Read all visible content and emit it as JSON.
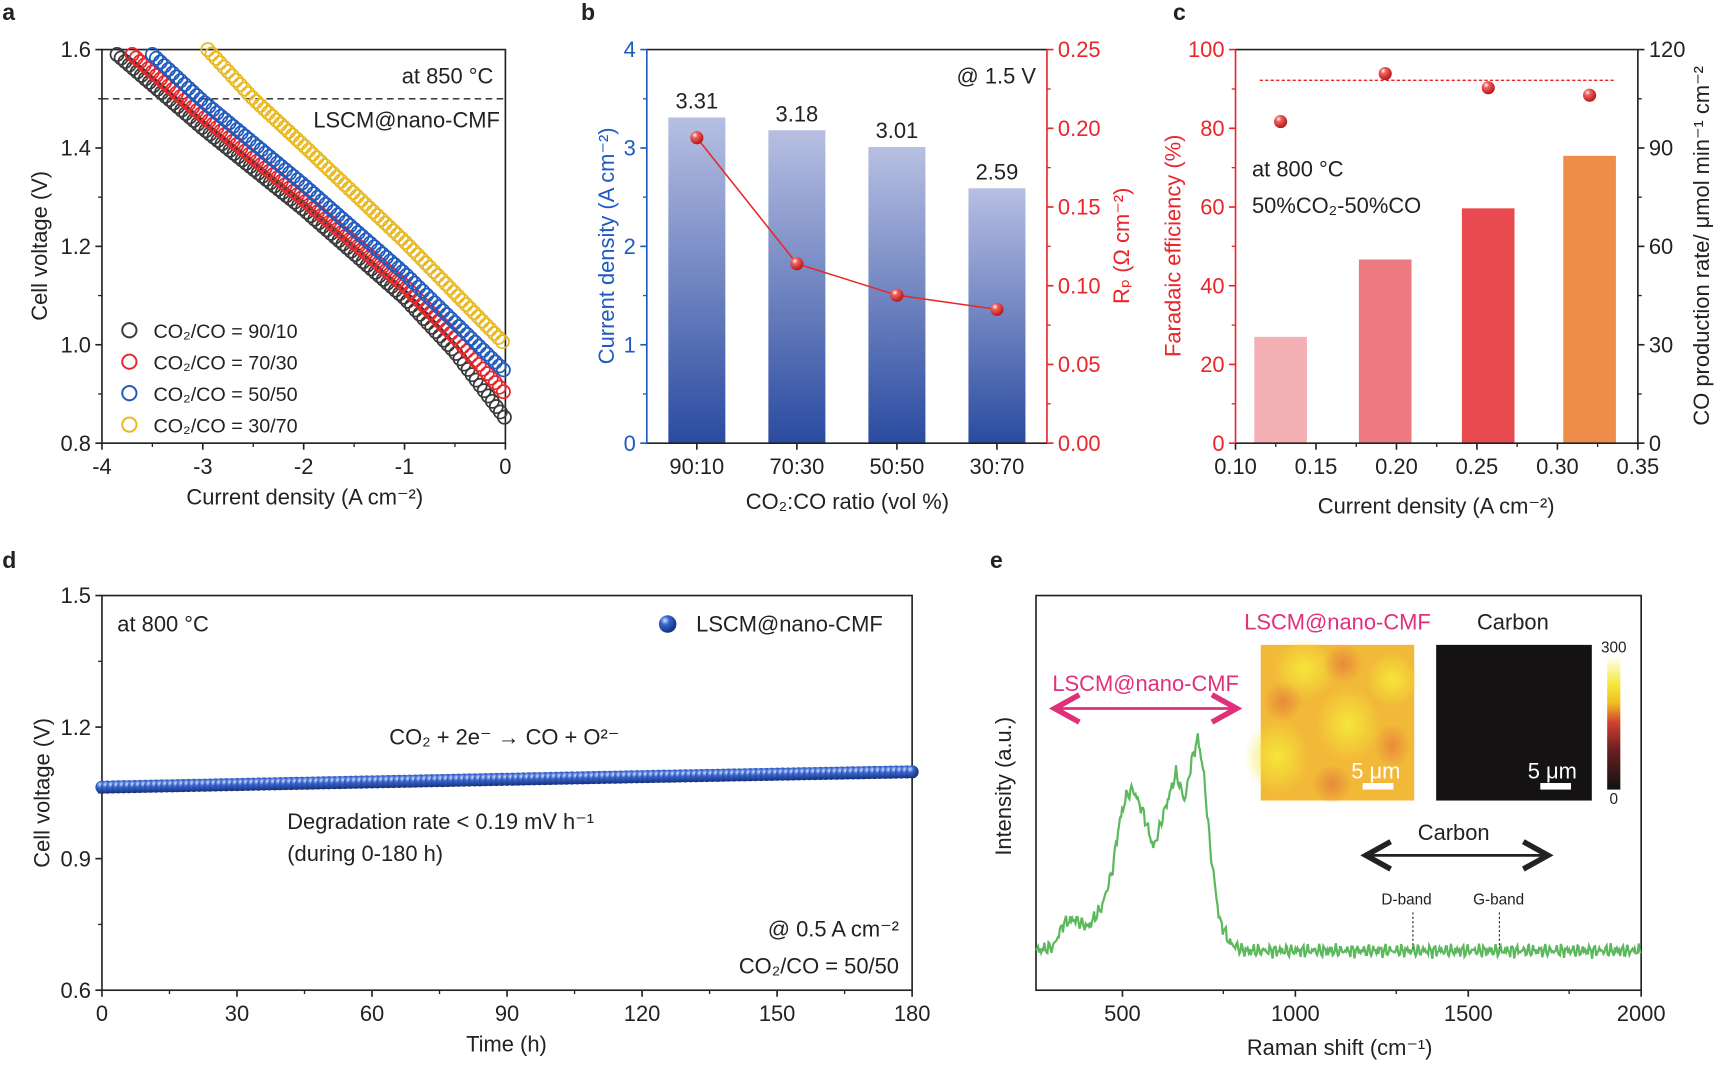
{
  "colors": {
    "black": "#3a3a3a",
    "red": "#e8262b",
    "blue": "#1f5bbf",
    "yellow": "#e8b820",
    "bar_blue_dark": "#2a4ba0",
    "bar_blue_light": "#b7bfe2",
    "rp_red": "#e8262b",
    "pink": "#e0307a",
    "raman_green": "#5cb85c",
    "c_bars": [
      "#f4b0b4",
      "#ec7a80",
      "#e84a4f",
      "#f08c4a"
    ]
  },
  "panel_labels": [
    "a",
    "b",
    "c",
    "d",
    "e"
  ],
  "chart_data": [
    {
      "panel": "a",
      "type": "scatter",
      "xlabel": "Current density (A cm⁻²)",
      "ylabel": "Cell voltage (V)",
      "xlim": [
        -4,
        0
      ],
      "ylim": [
        0.8,
        1.6
      ],
      "xticks": [
        "-4",
        "-3",
        "-2",
        "-1",
        "0"
      ],
      "yticks": [
        "0.8",
        "1.0",
        "1.2",
        "1.4",
        "1.6"
      ],
      "annotations": [
        "at 850 °C",
        "LSCM@nano-CMF"
      ],
      "reference_line_y": 1.5,
      "legend_position": "bottom-left",
      "series": [
        {
          "name": "CO₂/CO = 90/10",
          "color": "#3a3a3a",
          "points": [
            [
              -3.85,
              1.59
            ],
            [
              -3,
              1.44
            ],
            [
              -2,
              1.275
            ],
            [
              -1,
              1.095
            ],
            [
              -0.5,
              0.985
            ],
            [
              0,
              0.85
            ]
          ]
        },
        {
          "name": "CO₂/CO = 70/30",
          "color": "#e8262b",
          "points": [
            [
              -3.7,
              1.59
            ],
            [
              -3,
              1.465
            ],
            [
              -2,
              1.295
            ],
            [
              -1,
              1.12
            ],
            [
              -0.5,
              1.015
            ],
            [
              0,
              0.9
            ]
          ]
        },
        {
          "name": "CO₂/CO = 50/50",
          "color": "#1f5bbf",
          "points": [
            [
              -3.5,
              1.59
            ],
            [
              -3,
              1.495
            ],
            [
              -2,
              1.325
            ],
            [
              -1,
              1.145
            ],
            [
              -0.5,
              1.045
            ],
            [
              0,
              0.945
            ]
          ]
        },
        {
          "name": "CO₂/CO = 30/70",
          "color": "#e8b820",
          "points": [
            [
              -2.95,
              1.6
            ],
            [
              -2.5,
              1.5
            ],
            [
              -2,
              1.405
            ],
            [
              -1,
              1.21
            ],
            [
              -0.5,
              1.105
            ],
            [
              0,
              1.0
            ]
          ]
        }
      ]
    },
    {
      "panel": "b",
      "type": "bar",
      "categories": [
        "90:10",
        "70:30",
        "50:50",
        "30:70"
      ],
      "xlabel": "CO₂:CO ratio (vol %)",
      "ylabel": "Current density (A cm⁻²)",
      "ylim": [
        0,
        4
      ],
      "yticks": [
        "0",
        "1",
        "2",
        "3",
        "4"
      ],
      "y2label": "Rₚ (Ω cm⁻²)",
      "y2lim": [
        0,
        0.25
      ],
      "y2ticks": [
        "0.00",
        "0.05",
        "0.10",
        "0.15",
        "0.20",
        "0.25"
      ],
      "annotation": "@ 1.5 V",
      "series": [
        {
          "name": "Current density",
          "axis": "left",
          "type": "bar",
          "values": [
            3.31,
            3.18,
            3.01,
            2.59
          ],
          "labels": [
            "3.31",
            "3.18",
            "3.01",
            "2.59"
          ]
        },
        {
          "name": "Rp",
          "axis": "right",
          "type": "line",
          "values": [
            0.194,
            0.114,
            0.094,
            0.085
          ]
        }
      ]
    },
    {
      "panel": "c",
      "type": "bar",
      "x": [
        0.128,
        0.193,
        0.257,
        0.32
      ],
      "xlabel": "Current density (A cm⁻²)",
      "xlim": [
        0.1,
        0.35
      ],
      "xticks": [
        "0.10",
        "0.15",
        "0.20",
        "0.25",
        "0.30",
        "0.35"
      ],
      "ylabel": "Faradaic efficiency (%)",
      "ylim": [
        0,
        100
      ],
      "yticks": [
        "0",
        "20",
        "40",
        "60",
        "80",
        "100"
      ],
      "y2label": "CO production rate/ μmol min⁻¹ cm⁻²",
      "y2lim": [
        0,
        120
      ],
      "y2ticks": [
        "0",
        "30",
        "60",
        "90",
        "120"
      ],
      "annotations": [
        "at 800 °C",
        "50%CO₂-50%CO"
      ],
      "reference_line_y": 92.2,
      "series": [
        {
          "name": "CO production rate",
          "axis": "right",
          "type": "bar",
          "values": [
            32.4,
            56,
            71.6,
            87.6
          ]
        },
        {
          "name": "Faradaic efficiency",
          "axis": "left",
          "type": "scatter",
          "values": [
            81.7,
            93.9,
            90.3,
            88.4
          ]
        }
      ]
    },
    {
      "panel": "d",
      "type": "scatter",
      "xlabel": "Time (h)",
      "ylabel": "Cell voltage (V)",
      "xlim": [
        0,
        180
      ],
      "ylim": [
        0.6,
        1.5
      ],
      "xticks": [
        "0",
        "30",
        "60",
        "90",
        "120",
        "150",
        "180"
      ],
      "yticks": [
        "0.6",
        "0.9",
        "1.2",
        "1.5"
      ],
      "legend": "LSCM@nano-CMF",
      "legend_position": "top-right",
      "annotations": [
        "at 800 °C",
        "CO₂ + 2e⁻ → CO + O²⁻",
        "Degradation rate < 0.19 mV h⁻¹",
        "(during 0-180 h)",
        "@ 0.5 A cm⁻²",
        "CO₂/CO = 50/50"
      ],
      "series": [
        {
          "name": "LSCM@nano-CMF",
          "points": [
            [
              0,
              1.063
            ],
            [
              60,
              1.075
            ],
            [
              120,
              1.087
            ],
            [
              180,
              1.098
            ]
          ]
        }
      ]
    },
    {
      "panel": "e",
      "type": "line",
      "xlabel": "Raman shift (cm⁻¹)",
      "ylabel": "Intensity (a.u.)",
      "xlim": [
        250,
        2000
      ],
      "xticks": [
        "500",
        "1000",
        "1500",
        "2000"
      ],
      "annotations": {
        "left_range": "LSCM@nano-CMF",
        "right_range": "Carbon",
        "d_band": "D-band",
        "g_band": "G-band"
      },
      "band_positions": {
        "d_band": 1340,
        "g_band": 1590
      },
      "insets": {
        "map1_title": "LSCM@nano-CMF",
        "map2_title": "Carbon",
        "scale_bar": "5 μm",
        "colorbar_max": "300",
        "colorbar_min": "0"
      },
      "series": [
        {
          "points": [
            [
              250,
              10
            ],
            [
              300,
              11
            ],
            [
              330,
              17
            ],
            [
              360,
              18
            ],
            [
              400,
              16
            ],
            [
              440,
              21
            ],
            [
              470,
              30
            ],
            [
              490,
              42
            ],
            [
              510,
              49
            ],
            [
              530,
              51
            ],
            [
              560,
              45
            ],
            [
              590,
              36
            ],
            [
              620,
              45
            ],
            [
              655,
              55
            ],
            [
              680,
              48
            ],
            [
              700,
              58
            ],
            [
              718,
              64
            ],
            [
              735,
              55
            ],
            [
              755,
              35
            ],
            [
              780,
              18
            ],
            [
              810,
              12
            ],
            [
              850,
              10
            ],
            [
              2000,
              10
            ]
          ]
        }
      ]
    }
  ]
}
